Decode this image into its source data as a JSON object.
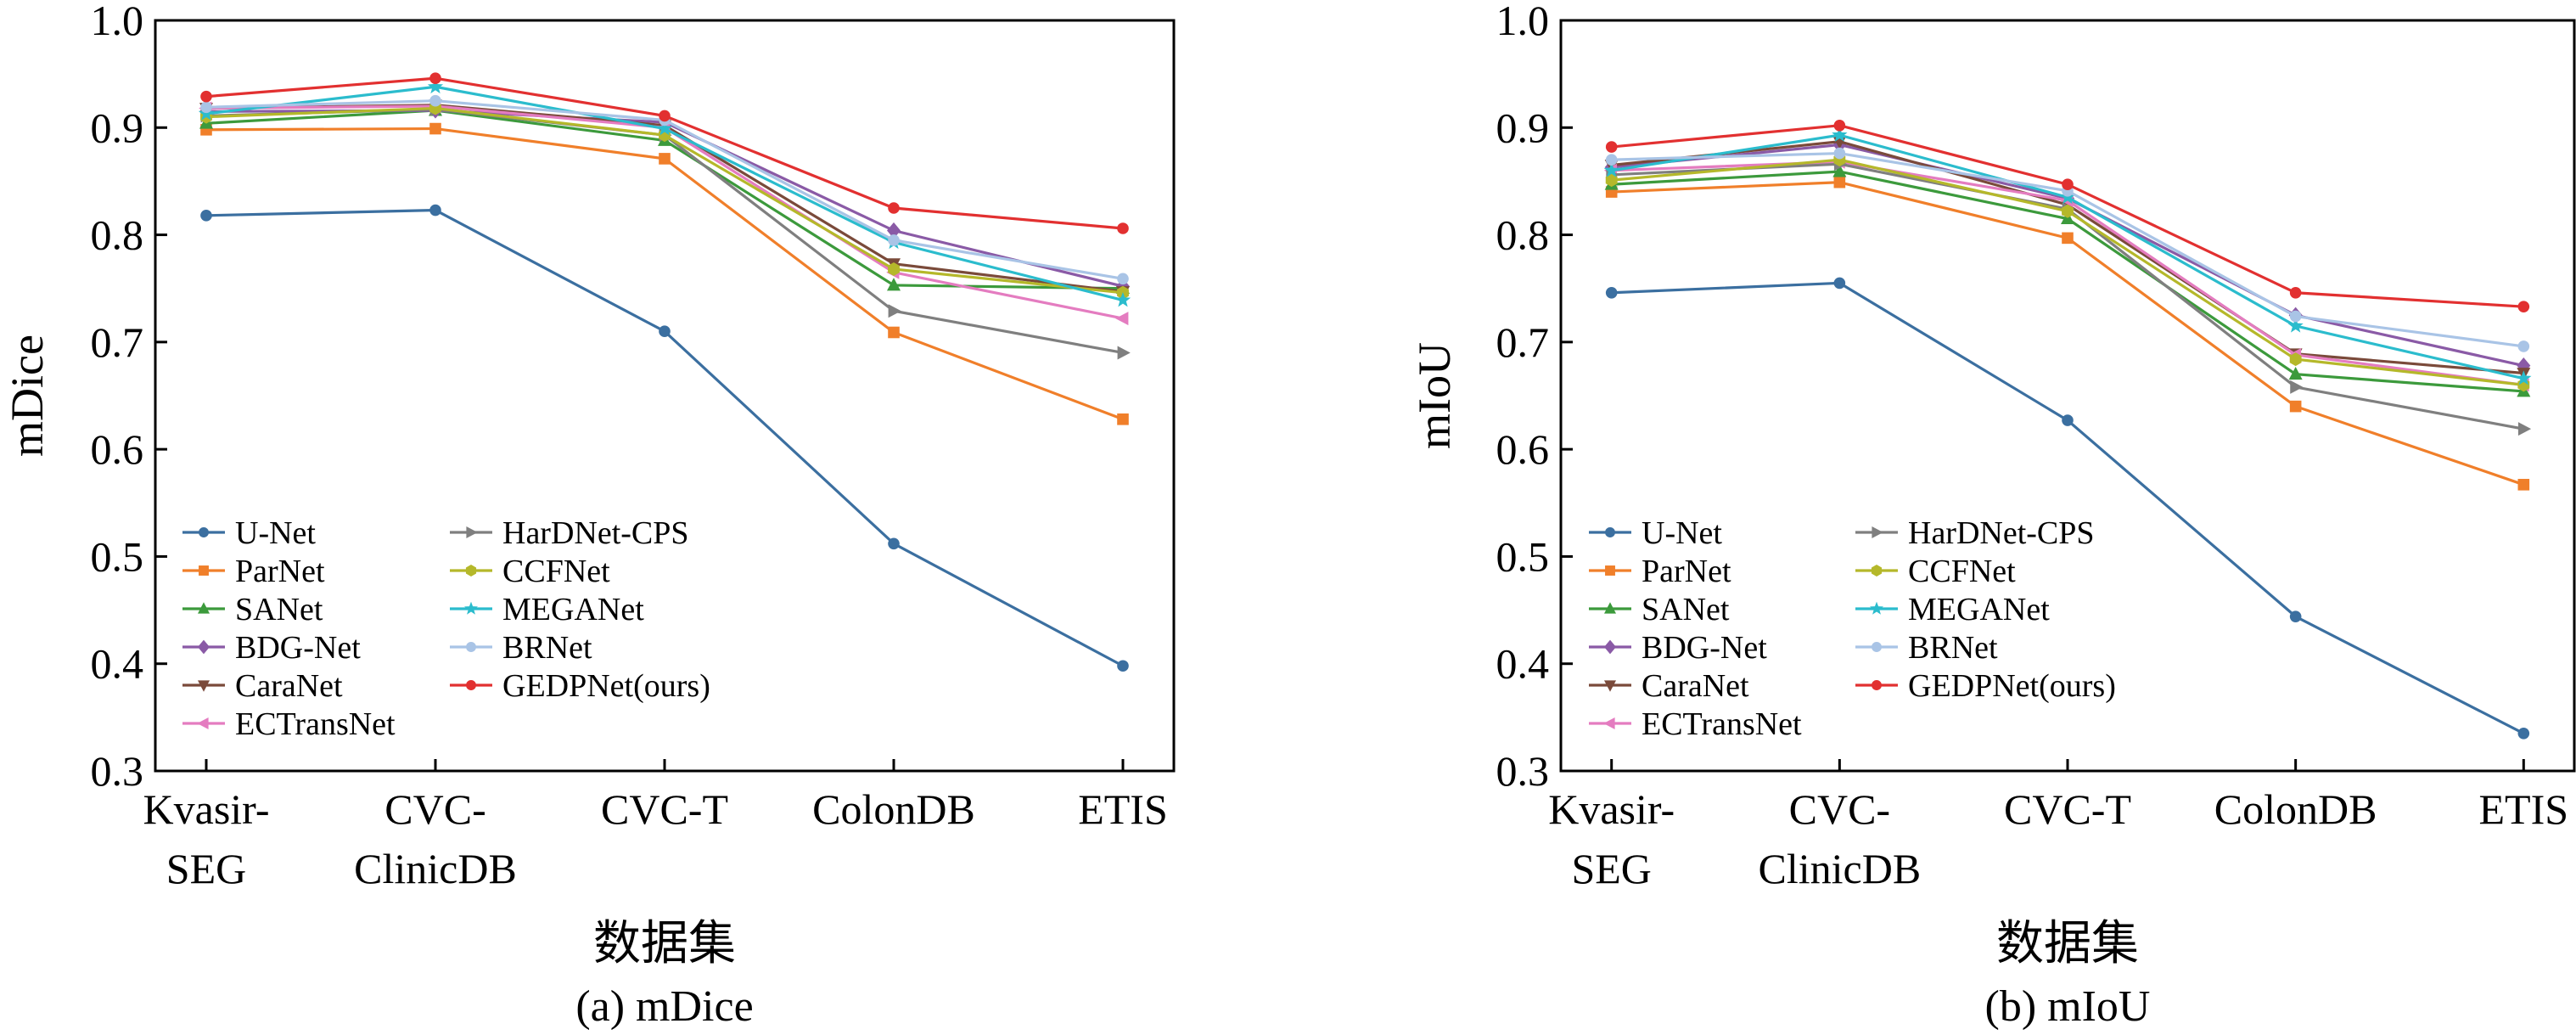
{
  "chart_data": [
    {
      "type": "line",
      "caption": "(a) mDice",
      "xlabel": "数据集",
      "ylabel": "mDice",
      "ylim": [
        0.3,
        1.0
      ],
      "yticks": [
        "0.3",
        "0.4",
        "0.5",
        "0.6",
        "0.7",
        "0.8",
        "0.9",
        "1.0"
      ],
      "categories": [
        [
          "Kvasir-",
          "SEG"
        ],
        [
          "CVC-",
          "ClinicDB"
        ],
        [
          "CVC-T"
        ],
        [
          "ColonDB"
        ],
        [
          "ETIS"
        ]
      ],
      "legend_position": "lower-left",
      "series": [
        {
          "name": "U-Net",
          "color": "#3b6fa0",
          "marker": "circle",
          "values": [
            0.818,
            0.823,
            0.71,
            0.512,
            0.398
          ]
        },
        {
          "name": "ParNet",
          "color": "#f07f2a",
          "marker": "square",
          "values": [
            0.898,
            0.899,
            0.871,
            0.709,
            0.628
          ]
        },
        {
          "name": "SANet",
          "color": "#3c9a3c",
          "marker": "triangle-up",
          "values": [
            0.904,
            0.916,
            0.888,
            0.753,
            0.75
          ]
        },
        {
          "name": "BDG-Net",
          "color": "#8a5aa6",
          "marker": "diamond",
          "values": [
            0.915,
            0.916,
            0.905,
            0.804,
            0.752
          ]
        },
        {
          "name": "CaraNet",
          "color": "#7a4a3a",
          "marker": "triangle-down",
          "values": [
            0.918,
            0.921,
            0.902,
            0.773,
            0.747
          ]
        },
        {
          "name": "ECTransNet",
          "color": "#e47cc0",
          "marker": "triangle-left",
          "values": [
            0.918,
            0.92,
            0.9,
            0.765,
            0.722
          ]
        },
        {
          "name": "HarDNet-CPS",
          "color": "#7f7f7f",
          "marker": "triangle-right",
          "values": [
            0.911,
            0.917,
            0.893,
            0.729,
            0.69
          ]
        },
        {
          "name": "CCFNet",
          "color": "#b5b82a",
          "marker": "hexagon",
          "values": [
            0.91,
            0.918,
            0.893,
            0.768,
            0.746
          ]
        },
        {
          "name": "MEGANet",
          "color": "#2bbccd",
          "marker": "star",
          "values": [
            0.913,
            0.938,
            0.899,
            0.793,
            0.739
          ]
        },
        {
          "name": "BRNet",
          "color": "#a9c4e6",
          "marker": "circle",
          "values": [
            0.919,
            0.925,
            0.907,
            0.795,
            0.759
          ]
        },
        {
          "name": "GEDPNet(ours)",
          "color": "#e23030",
          "marker": "circle",
          "values": [
            0.929,
            0.946,
            0.911,
            0.825,
            0.806
          ]
        }
      ]
    },
    {
      "type": "line",
      "caption": "(b) mIoU",
      "xlabel": "数据集",
      "ylabel": "mIoU",
      "ylim": [
        0.3,
        1.0
      ],
      "yticks": [
        "0.3",
        "0.4",
        "0.5",
        "0.6",
        "0.7",
        "0.8",
        "0.9",
        "1.0"
      ],
      "categories": [
        [
          "Kvasir-",
          "SEG"
        ],
        [
          "CVC-",
          "ClinicDB"
        ],
        [
          "CVC-T"
        ],
        [
          "ColonDB"
        ],
        [
          "ETIS"
        ]
      ],
      "legend_position": "lower-left",
      "series": [
        {
          "name": "U-Net",
          "color": "#3b6fa0",
          "marker": "circle",
          "values": [
            0.746,
            0.755,
            0.627,
            0.444,
            0.335
          ]
        },
        {
          "name": "ParNet",
          "color": "#f07f2a",
          "marker": "square",
          "values": [
            0.84,
            0.849,
            0.797,
            0.64,
            0.567
          ]
        },
        {
          "name": "SANet",
          "color": "#3c9a3c",
          "marker": "triangle-up",
          "values": [
            0.847,
            0.859,
            0.815,
            0.67,
            0.654
          ]
        },
        {
          "name": "BDG-Net",
          "color": "#8a5aa6",
          "marker": "diamond",
          "values": [
            0.863,
            0.884,
            0.834,
            0.725,
            0.678
          ]
        },
        {
          "name": "CaraNet",
          "color": "#7a4a3a",
          "marker": "triangle-down",
          "values": [
            0.865,
            0.887,
            0.828,
            0.689,
            0.671
          ]
        },
        {
          "name": "ECTransNet",
          "color": "#e47cc0",
          "marker": "triangle-left",
          "values": [
            0.86,
            0.868,
            0.832,
            0.688,
            0.66
          ]
        },
        {
          "name": "HarDNet-CPS",
          "color": "#7f7f7f",
          "marker": "triangle-right",
          "values": [
            0.856,
            0.866,
            0.824,
            0.658,
            0.619
          ]
        },
        {
          "name": "CCFNet",
          "color": "#b5b82a",
          "marker": "hexagon",
          "values": [
            0.851,
            0.87,
            0.822,
            0.684,
            0.66
          ]
        },
        {
          "name": "MEGANet",
          "color": "#2bbccd",
          "marker": "star",
          "values": [
            0.86,
            0.893,
            0.835,
            0.715,
            0.666
          ]
        },
        {
          "name": "BRNet",
          "color": "#a9c4e6",
          "marker": "circle",
          "values": [
            0.87,
            0.876,
            0.841,
            0.724,
            0.696
          ]
        },
        {
          "name": "GEDPNet(ours)",
          "color": "#e23030",
          "marker": "circle",
          "values": [
            0.882,
            0.902,
            0.847,
            0.746,
            0.733
          ]
        }
      ]
    }
  ]
}
